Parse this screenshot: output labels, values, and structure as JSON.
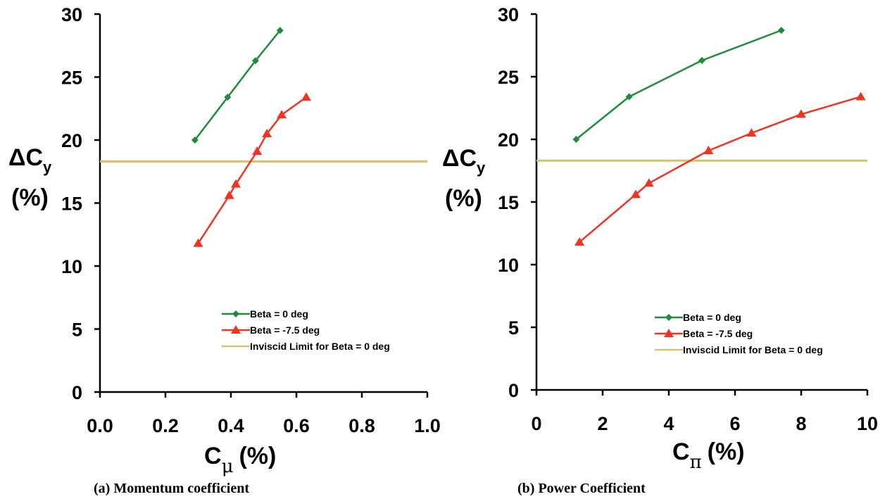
{
  "colors": {
    "green": "#1e8c3a",
    "red": "#ee3524",
    "gold": "#d6c16a"
  },
  "chart_data": [
    {
      "type": "line",
      "caption": "(a) Momentum coefficient",
      "xlabel_main": "C",
      "xlabel_sub": "μ",
      "xlabel_unit": "(%)",
      "ylabel_delta": "Δ",
      "ylabel_main": "C",
      "ylabel_sub": "y",
      "ylabel_unit": "(%)",
      "xlim": [
        0,
        1
      ],
      "ylim": [
        0,
        30
      ],
      "xticks": [
        "0.0",
        "0.2",
        "0.4",
        "0.6",
        "0.8",
        "1.0"
      ],
      "xtick_values": [
        0,
        0.2,
        0.4,
        0.6,
        0.8,
        1.0
      ],
      "yticks": [
        "0",
        "5",
        "10",
        "15",
        "20",
        "25",
        "30"
      ],
      "ytick_values": [
        0,
        5,
        10,
        15,
        20,
        25,
        30
      ],
      "legend_position": "lower-right",
      "series": [
        {
          "name": "Beta = 0 deg",
          "color": "#1e8c3a",
          "marker": "diamond",
          "x": [
            0.29,
            0.39,
            0.475,
            0.55
          ],
          "y": [
            20.0,
            23.4,
            26.3,
            28.7
          ]
        },
        {
          "name": "Beta = -7.5 deg",
          "color": "#ee3524",
          "marker": "triangle",
          "x": [
            0.3,
            0.395,
            0.415,
            0.48,
            0.51,
            0.555,
            0.63
          ],
          "y": [
            11.8,
            15.6,
            16.5,
            19.1,
            20.5,
            22.0,
            23.4
          ]
        }
      ],
      "hline": {
        "name": "Inviscid Limit for Beta = 0 deg",
        "y": 18.3,
        "color": "#d6c16a"
      }
    },
    {
      "type": "line",
      "caption": "(b) Power Coefficient",
      "xlabel_main": "C",
      "xlabel_sub": "π",
      "xlabel_unit": "(%)",
      "ylabel_delta": "Δ",
      "ylabel_main": "C",
      "ylabel_sub": "y",
      "ylabel_unit": "(%)",
      "xlim": [
        0,
        10
      ],
      "ylim": [
        0,
        30
      ],
      "xticks": [
        "0",
        "2",
        "4",
        "6",
        "8",
        "10"
      ],
      "xtick_values": [
        0,
        2,
        4,
        6,
        8,
        10
      ],
      "yticks": [
        "0",
        "5",
        "10",
        "15",
        "20",
        "25",
        "30"
      ],
      "ytick_values": [
        0,
        5,
        10,
        15,
        20,
        25,
        30
      ],
      "legend_position": "lower-right",
      "series": [
        {
          "name": "Beta = 0 deg",
          "color": "#1e8c3a",
          "marker": "diamond",
          "x": [
            1.2,
            2.8,
            5.0,
            7.4
          ],
          "y": [
            20.0,
            23.4,
            26.3,
            28.7
          ]
        },
        {
          "name": "Beta = -7.5 deg",
          "color": "#ee3524",
          "marker": "triangle",
          "x": [
            1.3,
            3.0,
            3.4,
            5.2,
            6.5,
            8.0,
            9.8
          ],
          "y": [
            11.8,
            15.6,
            16.5,
            19.1,
            20.5,
            22.0,
            23.4
          ]
        }
      ],
      "hline": {
        "name": "Inviscid Limit for Beta = 0 deg",
        "y": 18.3,
        "color": "#d6c16a"
      }
    }
  ]
}
